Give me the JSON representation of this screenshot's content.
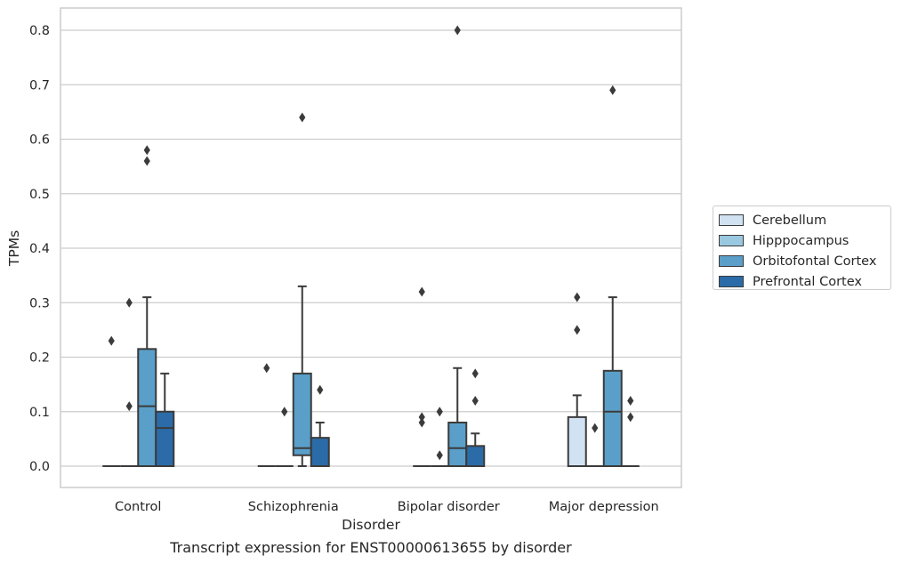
{
  "caption": "Transcript expression for ENST00000613655 by disorder",
  "chart_data": {
    "type": "boxplot",
    "xlabel": "Disorder",
    "ylabel": "TPMs",
    "ylim": [
      -0.04,
      0.84
    ],
    "yticks": [
      "0.0",
      "0.1",
      "0.2",
      "0.3",
      "0.4",
      "0.5",
      "0.6",
      "0.7",
      "0.8"
    ],
    "grid": true,
    "legend_position": "right",
    "categories": [
      "Control",
      "Schizophrenia",
      "Bipolar disorder",
      "Major depression"
    ],
    "series": [
      {
        "name": "Cerebellum",
        "color": "#d1e2f2",
        "boxes": [
          {
            "q1": 0,
            "median": 0,
            "q3": 0,
            "whisker_low": 0,
            "whisker_high": 0,
            "fliers": [
              0.23
            ]
          },
          {
            "q1": 0,
            "median": 0,
            "q3": 0,
            "whisker_low": 0,
            "whisker_high": 0,
            "fliers": [
              0.18
            ]
          },
          {
            "q1": 0,
            "median": 0,
            "q3": 0,
            "whisker_low": 0,
            "whisker_high": 0,
            "fliers": [
              0.32,
              0.09,
              0.08
            ]
          },
          {
            "q1": 0,
            "median": 0,
            "q3": 0.09,
            "whisker_low": 0,
            "whisker_high": 0.13,
            "fliers": [
              0.31,
              0.25
            ]
          }
        ]
      },
      {
        "name": "Hipppocampus",
        "color": "#9ac8e0",
        "boxes": [
          {
            "q1": 0,
            "median": 0,
            "q3": 0,
            "whisker_low": 0,
            "whisker_high": 0,
            "fliers": [
              0.3,
              0.11
            ]
          },
          {
            "q1": 0,
            "median": 0,
            "q3": 0,
            "whisker_low": 0,
            "whisker_high": 0,
            "fliers": [
              0.1
            ]
          },
          {
            "q1": 0,
            "median": 0,
            "q3": 0,
            "whisker_low": 0,
            "whisker_high": 0,
            "fliers": [
              0.1,
              0.02
            ]
          },
          {
            "q1": 0,
            "median": 0,
            "q3": 0,
            "whisker_low": 0,
            "whisker_high": 0,
            "fliers": [
              0.07
            ]
          }
        ]
      },
      {
        "name": "Orbitofontal Cortex",
        "color": "#5a9fc9",
        "boxes": [
          {
            "q1": 0,
            "median": 0.11,
            "q3": 0.215,
            "whisker_low": 0,
            "whisker_high": 0.31,
            "fliers": [
              0.58,
              0.56
            ]
          },
          {
            "q1": 0.02,
            "median": 0.033,
            "q3": 0.17,
            "whisker_low": 0,
            "whisker_high": 0.33,
            "fliers": [
              0.64
            ]
          },
          {
            "q1": 0,
            "median": 0.033,
            "q3": 0.08,
            "whisker_low": 0,
            "whisker_high": 0.18,
            "fliers": [
              0.8
            ]
          },
          {
            "q1": 0,
            "median": 0.1,
            "q3": 0.175,
            "whisker_low": 0,
            "whisker_high": 0.31,
            "fliers": [
              0.69
            ]
          }
        ]
      },
      {
        "name": "Prefrontal Cortex",
        "color": "#2b6ba8",
        "boxes": [
          {
            "q1": 0,
            "median": 0.07,
            "q3": 0.1,
            "whisker_low": 0,
            "whisker_high": 0.17,
            "fliers": []
          },
          {
            "q1": 0,
            "median": 0,
            "q3": 0.052,
            "whisker_low": 0,
            "whisker_high": 0.08,
            "fliers": [
              0.14
            ]
          },
          {
            "q1": 0,
            "median": 0,
            "q3": 0.037,
            "whisker_low": 0,
            "whisker_high": 0.06,
            "fliers": [
              0.17,
              0.12
            ]
          },
          {
            "q1": 0,
            "median": 0,
            "q3": 0,
            "whisker_low": 0,
            "whisker_high": 0,
            "fliers": [
              0.12,
              0.09
            ]
          }
        ]
      }
    ]
  }
}
